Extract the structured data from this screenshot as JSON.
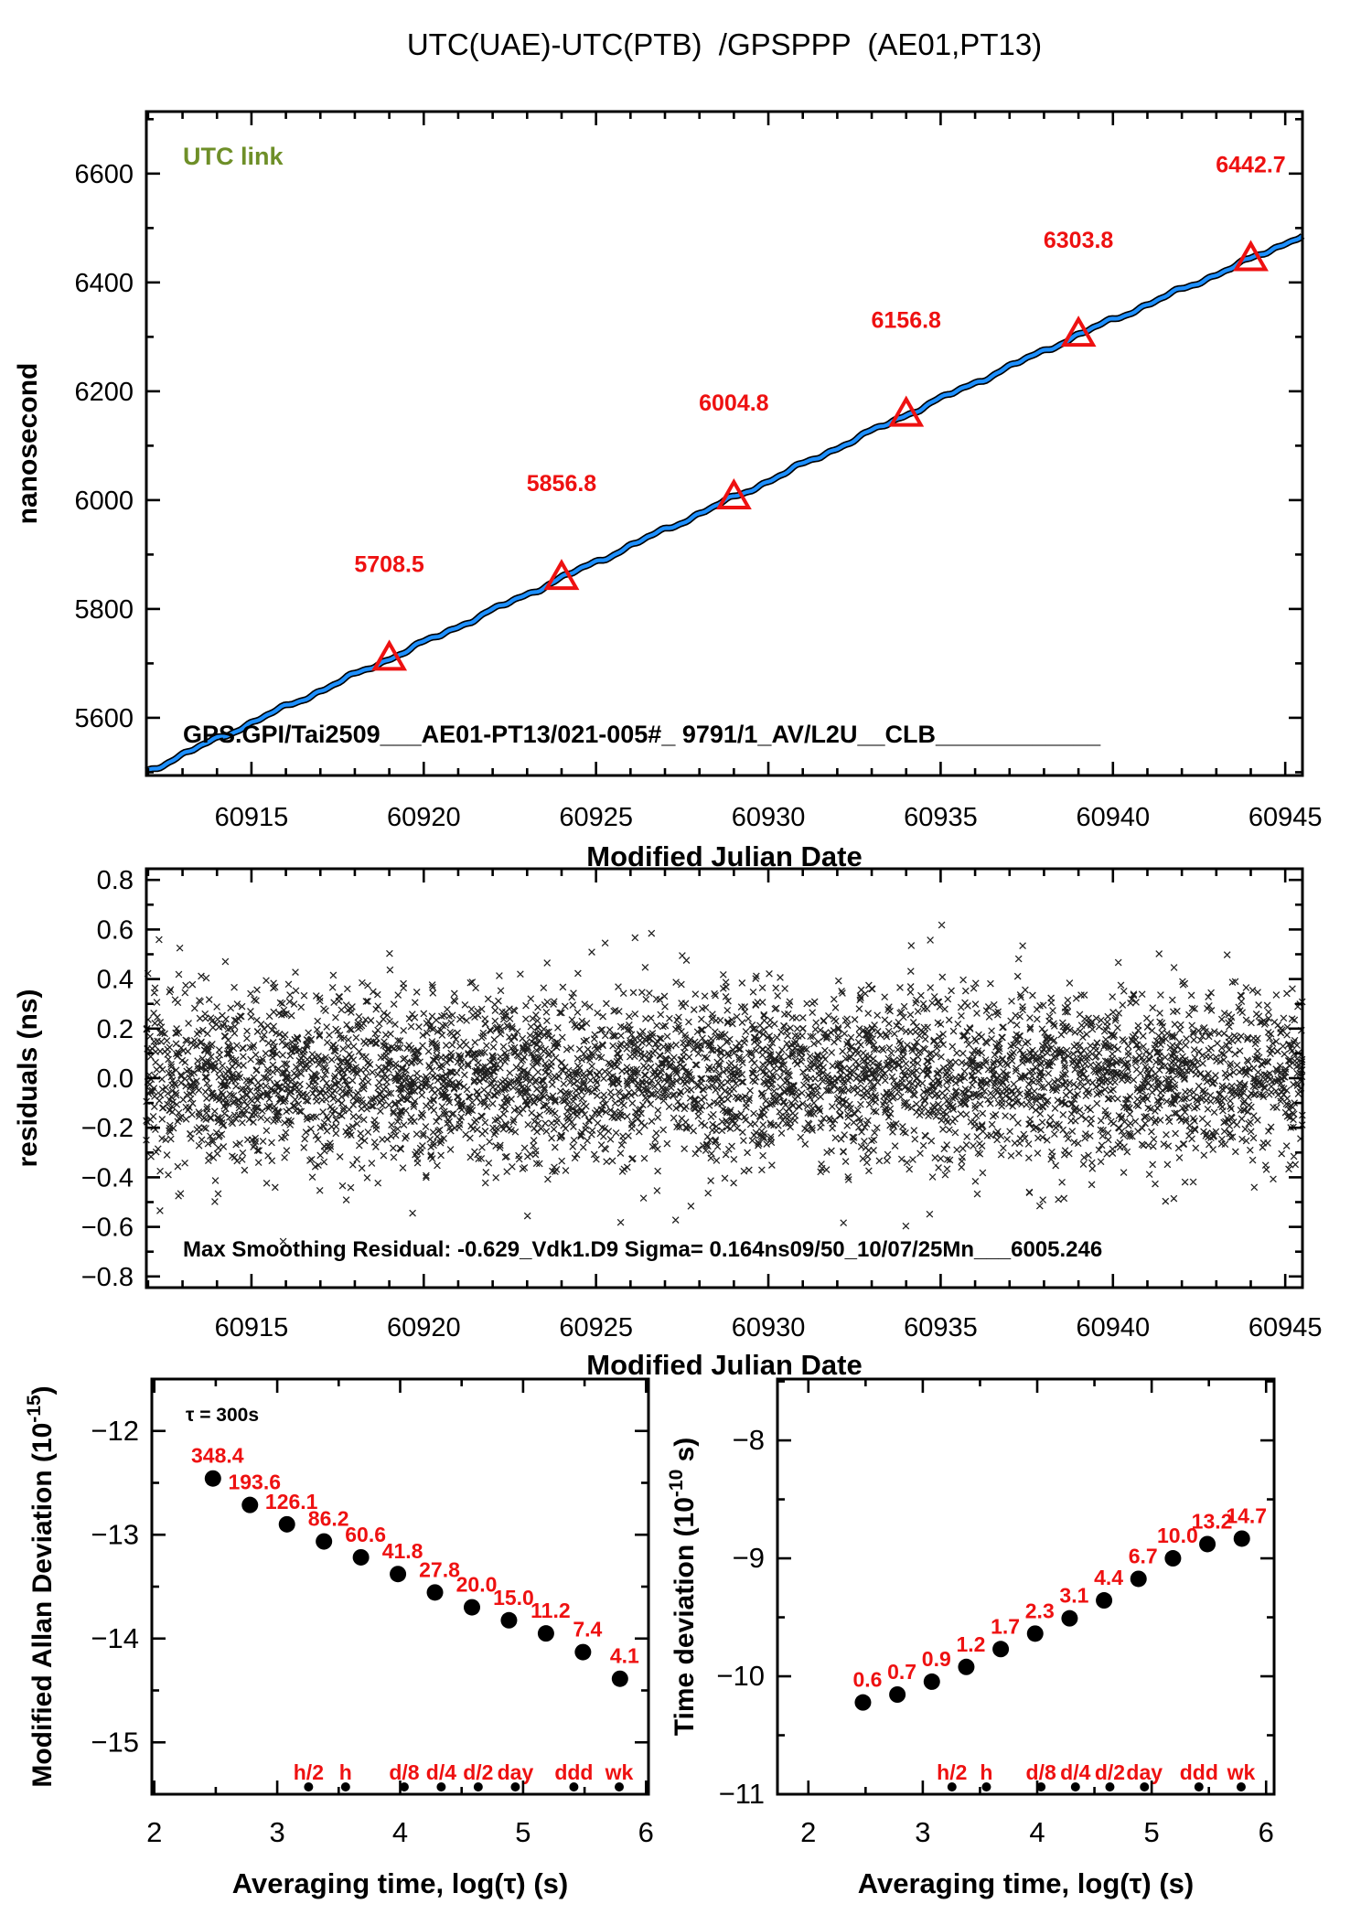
{
  "title": "UTC(UAE)-UTC(PTB)  /GPSPPP  (AE01,PT13)",
  "colors": {
    "ink": "#000000",
    "background": "#ffffff",
    "accent_red": "#ee1111",
    "line_blue": "#1e90ff",
    "note_olive": "#6e8f28"
  },
  "chart_data": [
    {
      "id": "phase",
      "type": "line",
      "corner_note": "UTC link",
      "footer": "GPS.GPI/Tai2509___AE01-PT13/021-005#_ 9791/1_AV/L2U__CLB____________",
      "xlabel": "Modified Julian Date",
      "ylabel": "nanosecond",
      "xlim": [
        60911.95,
        60945.5
      ],
      "ylim": [
        5494,
        6714
      ],
      "xticks": [
        60915,
        60920,
        60925,
        60930,
        60935,
        60940,
        60945
      ],
      "yticks": [
        5600,
        5800,
        6000,
        6200,
        6400,
        6600
      ],
      "xminor": 1,
      "yminor": 100,
      "xfmt": "int",
      "yfmt": "int",
      "line": {
        "anchors_x": [
          60911.95,
          60919,
          60924,
          60929,
          60934,
          60939,
          60944,
          60945.5
        ],
        "anchors_y": [
          5501,
          5708.5,
          5856.8,
          6004.8,
          6156.8,
          6303.8,
          6442.7,
          6487
        ],
        "wiggle_amp_ns": 2.4
      },
      "markers": [
        {
          "x": 60919,
          "y": 5708.5,
          "label": "5708.5"
        },
        {
          "x": 60924,
          "y": 5856.8,
          "label": "5856.8"
        },
        {
          "x": 60929,
          "y": 6004.8,
          "label": "6004.8"
        },
        {
          "x": 60934,
          "y": 6156.8,
          "label": "6156.8"
        },
        {
          "x": 60939,
          "y": 6303.8,
          "label": "6303.8"
        },
        {
          "x": 60944,
          "y": 6442.7,
          "label": "6442.7"
        }
      ]
    },
    {
      "id": "residuals",
      "type": "scatter",
      "xlabel": "Modified Julian Date",
      "ylabel": "residuals (ns)",
      "xlim": [
        60911.95,
        60945.5
      ],
      "ylim": [
        -0.845,
        0.845
      ],
      "xticks": [
        60915,
        60920,
        60925,
        60930,
        60935,
        60940,
        60945
      ],
      "yticks": [
        -0.8,
        -0.6,
        -0.4,
        -0.2,
        0.0,
        0.2,
        0.4,
        0.6,
        0.8
      ],
      "xminor": 1,
      "yminor": 0.1,
      "xfmt": "int",
      "yfmt": "1dp",
      "noise": {
        "count": 4600,
        "sigma": 0.175,
        "clip": 0.66,
        "seed": 20250710
      },
      "footer": "Max Smoothing Residual: -0.629_Vdk1.D9  Sigma= 0.164ns09/50_10/07/25Mn___6005.246"
    },
    {
      "id": "mdev",
      "type": "dev",
      "corner_note": "τ = 300s",
      "xlabel": "Averaging time, log(τ) (s)",
      "ylabel_parts": [
        "Modified Allan Deviation (10",
        "-15",
        ")"
      ],
      "xlim": [
        1.98,
        6.02
      ],
      "ylim": [
        -15.5,
        -11.5
      ],
      "xticks": [
        2,
        3,
        4,
        5,
        6
      ],
      "yticks": [
        -15,
        -14,
        -13,
        -12
      ],
      "xminor": 0.5,
      "yminor": 0.5,
      "xfmt": "int",
      "yfmt": "int",
      "log_tau": [
        2.477,
        2.778,
        3.079,
        3.38,
        3.681,
        3.982,
        4.283,
        4.584,
        4.885,
        5.186,
        5.487,
        5.788
      ],
      "values": [
        348.4,
        193.6,
        126.1,
        86.2,
        60.6,
        41.8,
        27.8,
        20.0,
        15.0,
        11.2,
        7.4,
        4.1
      ],
      "unit_exponent": -15,
      "tau_marks": {
        "labels": [
          "h/2",
          "h",
          "d/8",
          "d/4",
          "d/2",
          "day",
          "ddd",
          "wk"
        ],
        "log_tau": [
          3.255,
          3.556,
          4.033,
          4.334,
          4.635,
          4.937,
          5.413,
          5.782
        ]
      }
    },
    {
      "id": "tdev",
      "type": "dev",
      "corner_note": null,
      "xlabel": "Averaging time, log(τ) (s)",
      "ylabel_parts": [
        "Time deviation (10",
        "-10",
        " s)"
      ],
      "xlim": [
        1.73,
        6.07
      ],
      "ylim": [
        -11.0,
        -7.48
      ],
      "xticks": [
        2,
        3,
        4,
        5,
        6
      ],
      "yticks": [
        -11,
        -10,
        -9,
        -8
      ],
      "xminor": 0.5,
      "yminor": 0.5,
      "xfmt": "int",
      "yfmt": "int",
      "log_tau": [
        2.477,
        2.778,
        3.079,
        3.38,
        3.681,
        3.982,
        4.283,
        4.584,
        4.885,
        5.186,
        5.487,
        5.788
      ],
      "values": [
        0.6,
        0.7,
        0.9,
        1.2,
        1.7,
        2.3,
        3.1,
        4.4,
        6.7,
        10.0,
        13.2,
        14.7
      ],
      "unit_exponent": -10,
      "tau_marks": {
        "labels": [
          "h/2",
          "h",
          "d/8",
          "d/4",
          "d/2",
          "day",
          "ddd",
          "wk"
        ],
        "log_tau": [
          3.255,
          3.556,
          4.033,
          4.334,
          4.635,
          4.937,
          5.413,
          5.782
        ]
      }
    }
  ]
}
